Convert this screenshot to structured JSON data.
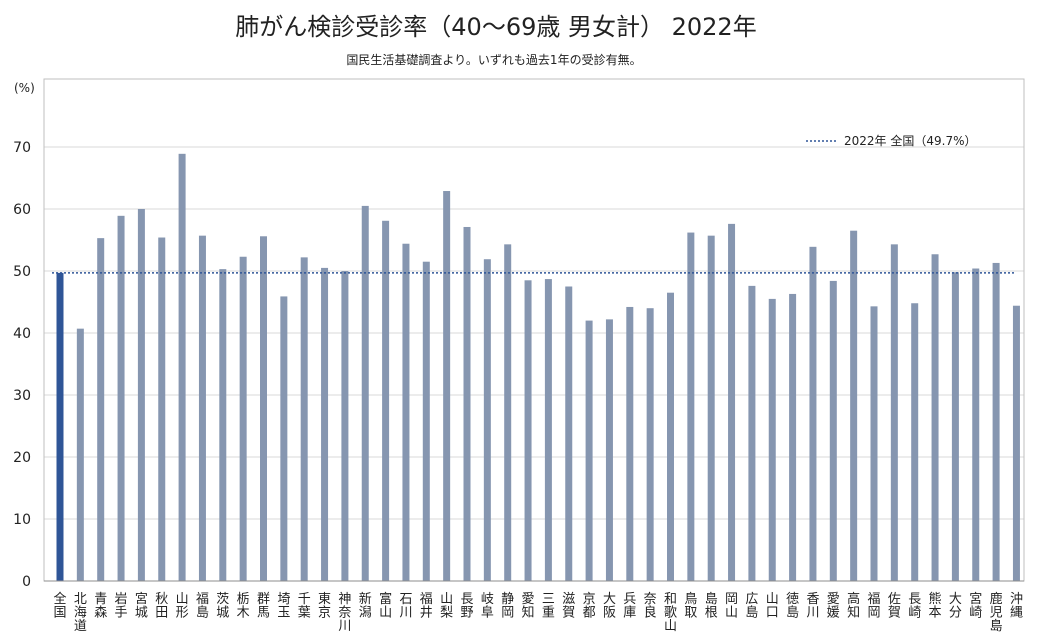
{
  "chart_data": {
    "type": "bar",
    "title": "肺がん検診受診率（40〜69歳 男女計） 2022年",
    "subtitle": "国民生活基礎調査より。いずれも過去1年の受診有無。",
    "ylabel": "(%)",
    "xlabel": "",
    "ylim": [
      0,
      70
    ],
    "yticks": [
      0,
      10,
      20,
      30,
      40,
      50,
      60,
      70
    ],
    "grid": true,
    "colors": {
      "bar": "#8696b0",
      "highlight": "#2f5597",
      "reference_line": "#2f5597",
      "grid": "#d9d9d9",
      "axis": "#bfbfbf"
    },
    "categories": [
      "全国",
      "北海道",
      "青森",
      "岩手",
      "宮城",
      "秋田",
      "山形",
      "福島",
      "茨城",
      "栃木",
      "群馬",
      "埼玉",
      "千葉",
      "東京",
      "神奈川",
      "新潟",
      "富山",
      "石川",
      "福井",
      "山梨",
      "長野",
      "岐阜",
      "静岡",
      "愛知",
      "三重",
      "滋賀",
      "京都",
      "大阪",
      "兵庫",
      "奈良",
      "和歌山",
      "鳥取",
      "島根",
      "岡山",
      "広島",
      "山口",
      "徳島",
      "香川",
      "愛媛",
      "高知",
      "福岡",
      "佐賀",
      "長崎",
      "熊本",
      "大分",
      "宮崎",
      "鹿児島",
      "沖縄"
    ],
    "values": [
      49.7,
      40.7,
      55.3,
      58.9,
      60.0,
      55.4,
      68.9,
      55.7,
      50.3,
      52.3,
      55.6,
      45.9,
      52.2,
      50.5,
      50.0,
      60.5,
      58.1,
      54.4,
      51.5,
      62.9,
      57.1,
      51.9,
      54.3,
      48.5,
      48.7,
      47.5,
      42.0,
      42.2,
      44.2,
      44.0,
      46.5,
      56.2,
      55.7,
      57.6,
      47.6,
      45.5,
      46.3,
      53.9,
      48.4,
      56.5,
      44.3,
      54.3,
      44.8,
      52.7,
      49.8,
      50.4,
      51.3,
      44.4
    ],
    "highlight_categories": [
      "全国"
    ],
    "reference_line": {
      "label": "2022年 全国（49.7%）",
      "value": 49.7,
      "style": "dotted"
    },
    "legend": {
      "position": "top-right",
      "entries": [
        "2022年 全国（49.7%）"
      ]
    }
  }
}
